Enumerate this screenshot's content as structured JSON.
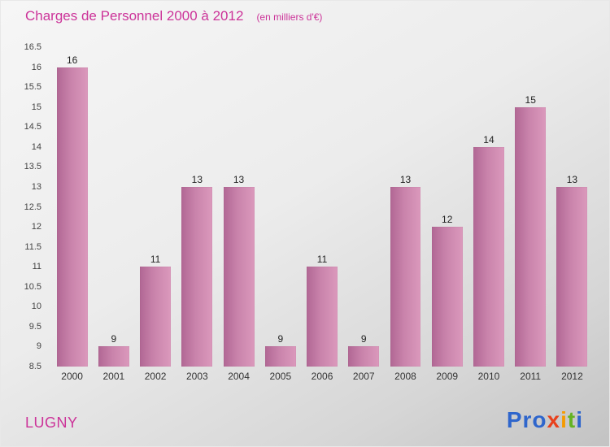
{
  "header": {
    "title": "Charges de Personnel 2000 à 2012",
    "subtitle": "(en milliers d'€)",
    "title_color": "#cc3399"
  },
  "chart_data": {
    "type": "bar",
    "title": "Charges de Personnel 2000 à 2012",
    "subtitle": "(en milliers d'€)",
    "categories": [
      "2000",
      "2001",
      "2002",
      "2003",
      "2004",
      "2005",
      "2006",
      "2007",
      "2008",
      "2009",
      "2010",
      "2011",
      "2012"
    ],
    "values": [
      16,
      9,
      11,
      13,
      13,
      9,
      11,
      9,
      13,
      12,
      14,
      15,
      13
    ],
    "xlabel": "",
    "ylabel": "",
    "ylim": [
      8.5,
      16.5
    ],
    "ytick_step": 0.5,
    "grid": false,
    "legend": false,
    "bar_color_start": "#b16794",
    "bar_color_end": "#db99bc",
    "value_labels_shown": true
  },
  "footer": {
    "entity": "LUGNY",
    "entity_color": "#cc3399",
    "logo": {
      "text": "Proxiti",
      "letters": [
        {
          "ch": "P",
          "color": "#2f66cc"
        },
        {
          "ch": "r",
          "color": "#2f66cc"
        },
        {
          "ch": "o",
          "color": "#2f66cc"
        },
        {
          "ch": "x",
          "color": "#e8401c"
        },
        {
          "ch": "i",
          "color": "#f59a00"
        },
        {
          "ch": "t",
          "color": "#64b322"
        },
        {
          "ch": "i",
          "color": "#2f66cc"
        }
      ]
    }
  }
}
